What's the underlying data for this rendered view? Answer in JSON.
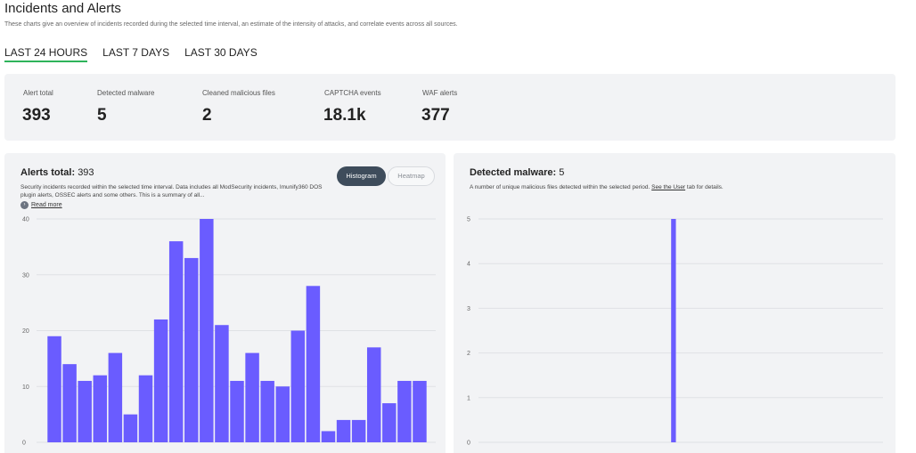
{
  "header": {
    "title": "Incidents and Alerts",
    "subtitle": "These charts give an overview of incidents recorded during the selected time interval, an estimate of the intensity of attacks, and correlate events across all sources."
  },
  "tabs": [
    {
      "label": "LAST 24 HOURS",
      "active": true
    },
    {
      "label": "LAST 7 DAYS",
      "active": false
    },
    {
      "label": "LAST 30 DAYS",
      "active": false
    }
  ],
  "stats": [
    {
      "label": "Alert total",
      "value": "393"
    },
    {
      "label": "Detected malware",
      "value": "5"
    },
    {
      "label": "Cleaned malicious files",
      "value": "2"
    },
    {
      "label": "CAPTCHA events",
      "value": "18.1k"
    },
    {
      "label": "WAF alerts",
      "value": "377"
    }
  ],
  "alerts_panel": {
    "title": "Alerts total:",
    "count": "393",
    "description": "Security incidents recorded within the selected time interval. Data includes all ModSecurity incidents, Imunify360 DOS plugin alerts, OSSEC alerts and some others. This is a summary of all...",
    "read_more": "Read more",
    "toggle_histogram": "Histogram",
    "toggle_heatmap": "Heatmap"
  },
  "malware_panel": {
    "title": "Detected malware:",
    "count": "5",
    "description_pre": "A number of unique malicious files detected within the selected period. ",
    "description_link": "See the User",
    "description_post": " tab for details."
  },
  "colors": {
    "bar": "#6a5cff",
    "tab_underline": "#2eb35a",
    "panel_bg": "#f2f3f5",
    "toggle_active": "#3e4c5b"
  },
  "chart_data": [
    {
      "type": "bar",
      "title": "",
      "ylim": [
        0,
        40
      ],
      "yticks": [
        "0",
        "10",
        "20",
        "30",
        "40"
      ],
      "grid": true,
      "values": [
        19,
        14,
        11,
        12,
        16,
        5,
        12,
        22,
        36,
        33,
        40,
        21,
        11,
        16,
        11,
        10,
        20,
        28,
        2,
        4,
        4,
        17,
        7,
        11,
        11
      ]
    },
    {
      "type": "bar",
      "title": "",
      "ylim": [
        0,
        5
      ],
      "yticks": [
        "0",
        "1",
        "2",
        "3",
        "4",
        "5"
      ],
      "grid": true,
      "values": [
        0,
        0,
        0,
        0,
        0,
        0,
        0,
        0,
        0,
        0,
        0,
        0,
        0,
        0,
        0,
        0,
        0,
        0,
        0,
        0,
        0,
        0,
        0,
        0,
        0,
        0,
        0,
        0,
        0,
        0,
        0,
        0,
        0,
        0,
        0,
        0,
        0,
        0,
        5,
        0,
        0,
        0,
        0,
        0,
        0,
        0,
        0,
        0,
        0,
        0,
        0,
        0,
        0,
        0,
        0,
        0,
        0,
        0,
        0,
        0,
        0,
        0,
        0,
        0,
        0,
        0,
        0,
        0,
        0,
        0,
        0,
        0,
        0,
        0,
        0,
        0,
        0,
        0,
        0
      ]
    }
  ]
}
